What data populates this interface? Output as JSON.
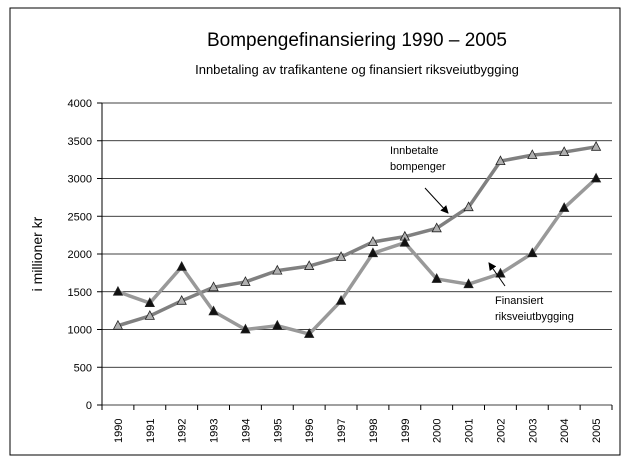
{
  "chart_data": {
    "type": "line",
    "title": "Bompengefinansiering 1990 – 2005",
    "subtitle": "Innbetaling av trafikantene og finansiert riksveiutbygging",
    "y_label": "i millioner kr",
    "categories": [
      "1990",
      "1991",
      "1992",
      "1993",
      "1994",
      "1995",
      "1996",
      "1997",
      "1998",
      "1999",
      "2000",
      "2001",
      "2002",
      "2003",
      "2004",
      "2005"
    ],
    "series": [
      {
        "name": "Innbetalte bompenger",
        "color": "#808080",
        "marker_color": "#b0b0b0",
        "values": [
          1050,
          1180,
          1380,
          1560,
          1630,
          1780,
          1840,
          1960,
          2160,
          2230,
          2340,
          2620,
          3230,
          3310,
          3350,
          3420
        ]
      },
      {
        "name": "Finansiert riksveiutbygging",
        "color": "#999999",
        "marker_color": "#111111",
        "values": [
          1500,
          1350,
          1830,
          1240,
          1000,
          1050,
          940,
          1380,
          2010,
          2150,
          1670,
          1600,
          1740,
          2010,
          2610,
          3000
        ]
      }
    ],
    "annotations": [
      [
        "Innbetalte",
        "bompenger"
      ],
      [
        "Finansiert",
        "riksveiutbygging"
      ]
    ],
    "ylim": [
      0,
      4000
    ],
    "yticks": [
      0,
      500,
      1000,
      1500,
      2000,
      2500,
      3000,
      3500,
      4000
    ],
    "grid": true
  }
}
